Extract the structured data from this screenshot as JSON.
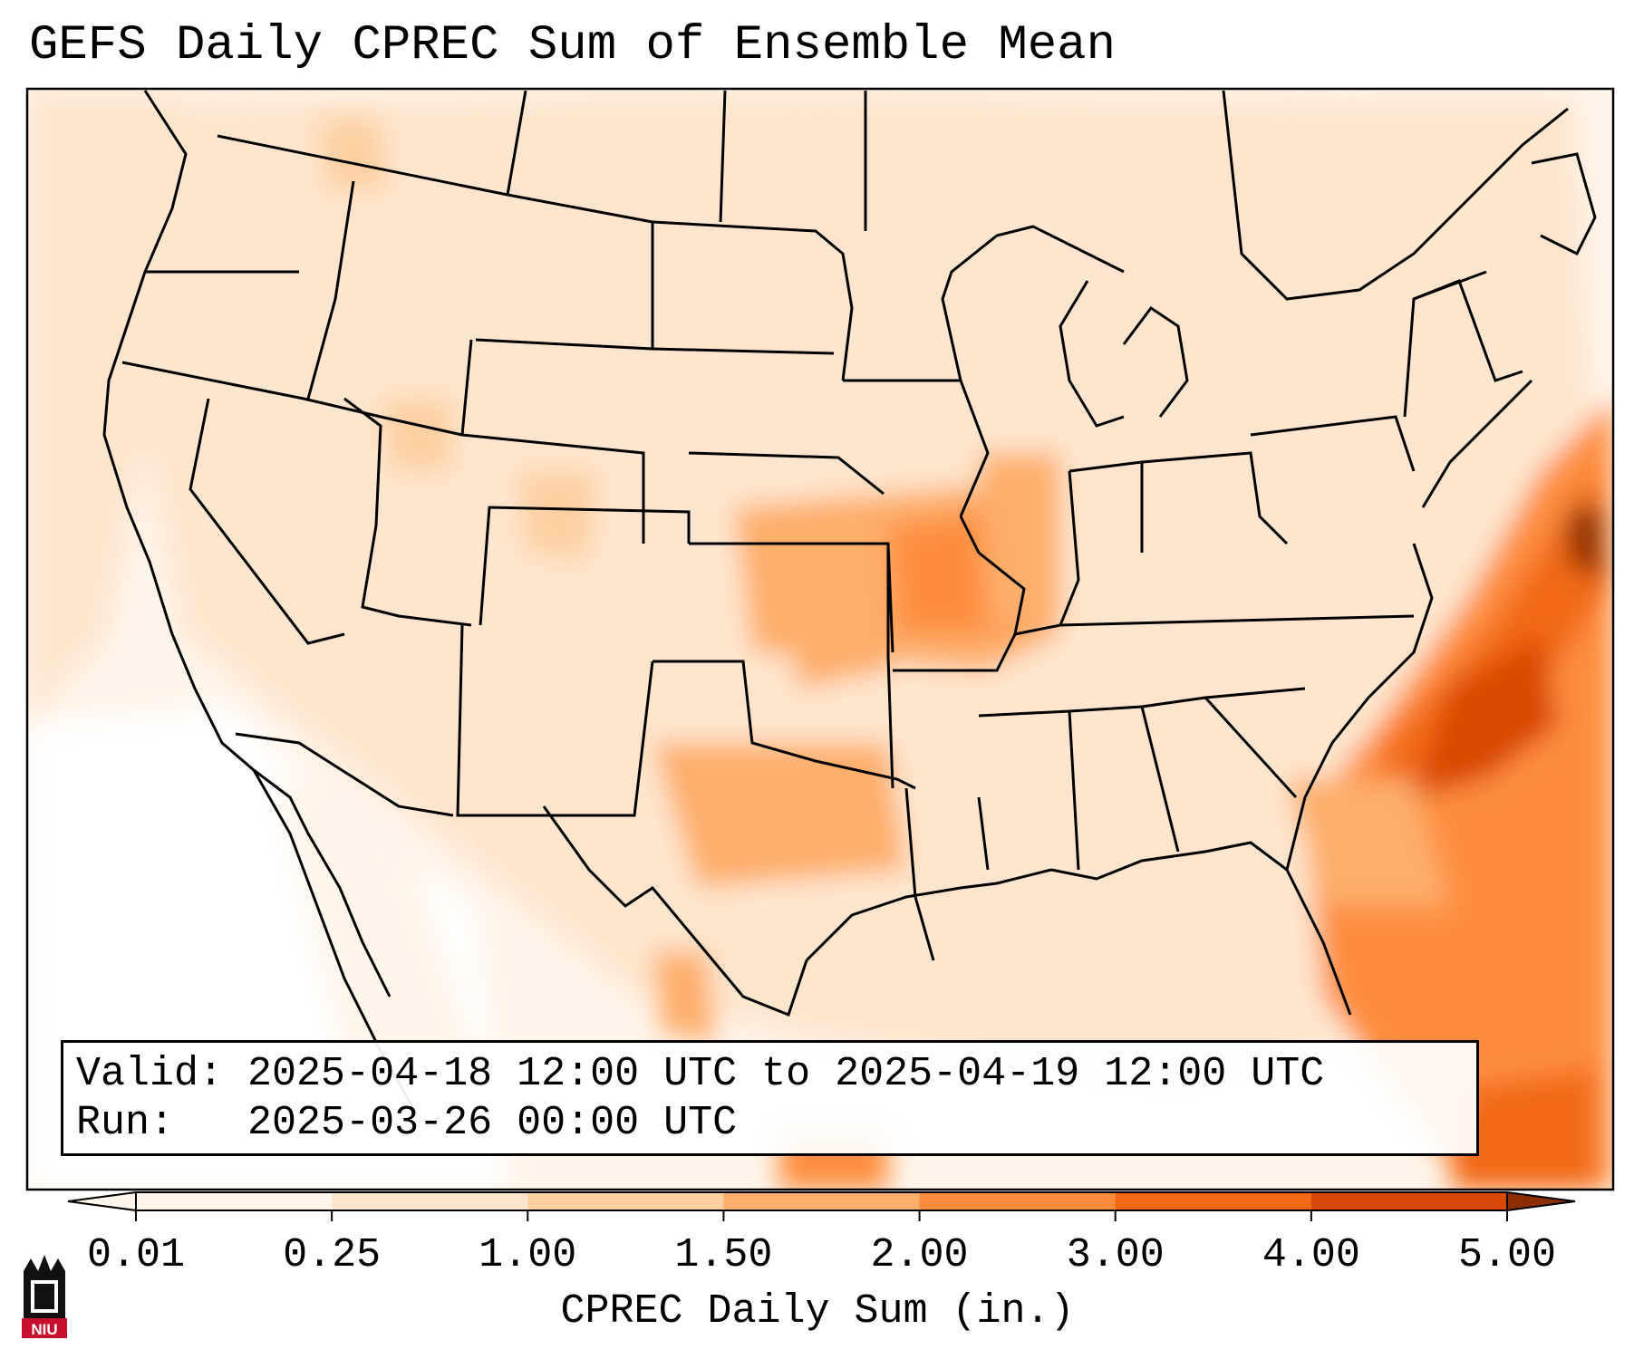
{
  "title": "GEFS Daily CPREC Sum of Ensemble Mean",
  "info": {
    "valid_label": "Valid:",
    "valid_value": "2025-04-18 12:00 UTC to 2025-04-19 12:00 UTC",
    "run_label": "Run:",
    "run_value": "2025-03-26 00:00 UTC"
  },
  "colorbar": {
    "label": "CPREC Daily Sum (in.)",
    "ticks": [
      "0.01",
      "0.25",
      "1.00",
      "1.50",
      "2.00",
      "3.00",
      "4.00",
      "5.00"
    ],
    "colors": [
      "#fff5eb",
      "#fee6ce",
      "#fdd0a2",
      "#fdae6b",
      "#fd8d3c",
      "#f16913",
      "#d94801",
      "#8c2d04"
    ],
    "extend": "both"
  },
  "logo": {
    "text": "NIU",
    "color": "#c8102e"
  }
}
